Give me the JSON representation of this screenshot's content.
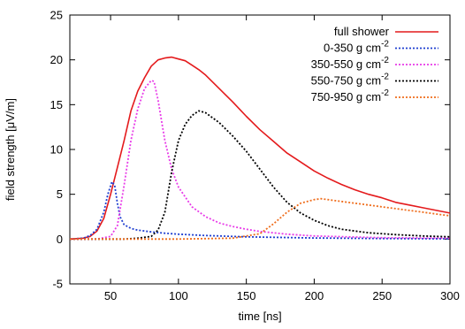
{
  "chart_data": {
    "type": "line",
    "xlabel": "time [ns]",
    "ylabel": "field strength [μV/m]",
    "xlim": [
      20,
      300
    ],
    "ylim": [
      -5,
      25
    ],
    "xticks": [
      50,
      100,
      150,
      200,
      250,
      300
    ],
    "yticks": [
      -5,
      0,
      5,
      10,
      15,
      20,
      25
    ],
    "grid": false,
    "legend_position": "top-right",
    "series": [
      {
        "name": "full shower",
        "color": "#e41a1c",
        "dash": "solid",
        "x": [
          20,
          30,
          35,
          40,
          45,
          50,
          55,
          60,
          65,
          70,
          75,
          80,
          85,
          90,
          95,
          100,
          105,
          110,
          115,
          120,
          130,
          140,
          150,
          160,
          170,
          180,
          190,
          200,
          210,
          220,
          230,
          240,
          250,
          260,
          270,
          280,
          290,
          300
        ],
        "y": [
          0,
          0.1,
          0.3,
          0.9,
          2.3,
          5.0,
          8.0,
          11.0,
          14.3,
          16.5,
          18.0,
          19.3,
          20.0,
          20.2,
          20.3,
          20.1,
          19.9,
          19.4,
          18.9,
          18.3,
          16.8,
          15.3,
          13.7,
          12.2,
          10.9,
          9.6,
          8.6,
          7.6,
          6.8,
          6.1,
          5.5,
          5.0,
          4.6,
          4.1,
          3.8,
          3.5,
          3.2,
          2.9
        ]
      },
      {
        "name": "0-350 g cm-2",
        "color": "#1f3fd0",
        "dash": "dotted",
        "x": [
          20,
          30,
          35,
          40,
          45,
          48,
          51,
          53,
          55,
          57,
          60,
          65,
          70,
          80,
          90,
          100,
          120,
          150,
          200,
          250,
          300
        ],
        "y": [
          0,
          0.1,
          0.4,
          1.1,
          3.0,
          5.0,
          6.4,
          6.0,
          4.0,
          2.5,
          1.6,
          1.2,
          1.0,
          0.8,
          0.65,
          0.55,
          0.4,
          0.25,
          0.12,
          0.06,
          0.03
        ]
      },
      {
        "name": "350-550 g cm-2",
        "color": "#e83be8",
        "dash": "dotted",
        "x": [
          20,
          40,
          50,
          55,
          60,
          65,
          70,
          75,
          80,
          82,
          85,
          90,
          95,
          100,
          110,
          120,
          130,
          140,
          150,
          160,
          180,
          200,
          250,
          300
        ],
        "y": [
          0,
          0,
          0.3,
          1.5,
          6.0,
          11.0,
          14.5,
          16.8,
          17.7,
          17.6,
          15.5,
          11.0,
          7.8,
          5.8,
          3.6,
          2.5,
          1.8,
          1.4,
          1.1,
          0.85,
          0.55,
          0.35,
          0.15,
          0.1
        ]
      },
      {
        "name": "550-750 g cm-2",
        "color": "#000000",
        "dash": "dotted",
        "x": [
          20,
          60,
          70,
          80,
          85,
          90,
          95,
          100,
          105,
          110,
          115,
          120,
          130,
          140,
          150,
          160,
          170,
          180,
          190,
          200,
          210,
          220,
          240,
          260,
          280,
          300
        ],
        "y": [
          0,
          0,
          0.1,
          0.3,
          1.0,
          3.0,
          7.5,
          11.0,
          12.8,
          13.8,
          14.3,
          14.1,
          13.0,
          11.5,
          9.8,
          7.8,
          5.8,
          4.1,
          2.9,
          2.1,
          1.5,
          1.1,
          0.7,
          0.5,
          0.35,
          0.25
        ]
      },
      {
        "name": "750-950 g cm-2",
        "color": "#ef6d1c",
        "dash": "dotted",
        "x": [
          20,
          100,
          140,
          160,
          170,
          180,
          190,
          200,
          205,
          210,
          220,
          230,
          240,
          250,
          260,
          270,
          280,
          290,
          300
        ],
        "y": [
          0,
          0,
          0.1,
          0.6,
          1.7,
          3.0,
          4.0,
          4.4,
          4.5,
          4.4,
          4.2,
          4.0,
          3.8,
          3.6,
          3.4,
          3.2,
          3.0,
          2.8,
          2.6
        ]
      }
    ]
  }
}
